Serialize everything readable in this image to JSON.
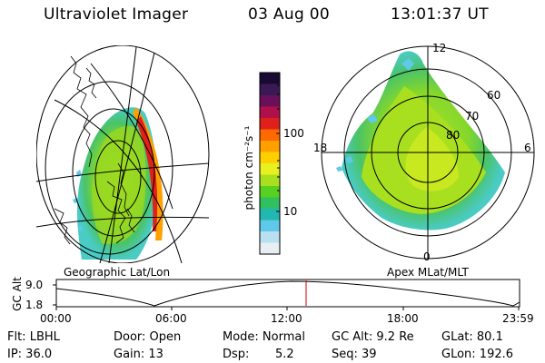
{
  "header": {
    "instrument": "Ultraviolet Imager",
    "date": "03 Aug 00",
    "time": "13:01:37 UT"
  },
  "left_panel": {
    "caption": "Geographic Lat/Lon"
  },
  "right_panel": {
    "caption": "Apex MLat/MLT",
    "mlt_labels": {
      "top": "12",
      "left": "18",
      "right": "6",
      "bottom": "0"
    },
    "lat_labels": [
      "60",
      "70",
      "80"
    ]
  },
  "colorbar": {
    "unit": "photon cm⁻²s⁻¹",
    "ticks": [
      "100",
      "10"
    ],
    "colors": [
      "#1a0a33",
      "#3a1a55",
      "#6a0f5a",
      "#b0104a",
      "#e0201a",
      "#ff6a00",
      "#ffa000",
      "#ffd000",
      "#e8f020",
      "#a8e020",
      "#58d020",
      "#30c060",
      "#20b8b0",
      "#60c8e8",
      "#b8e0f0",
      "#e8eef4"
    ]
  },
  "timeline": {
    "y_label": "GC Alt",
    "y_ticks": [
      "9.0",
      "1.8"
    ],
    "x_ticks": [
      "00:00",
      "06:00",
      "12:00",
      "18:00",
      "23:59"
    ]
  },
  "info": {
    "filter": "Flt: LBHL",
    "ip": "IP: 36.0",
    "door": "Door: Open",
    "gain": "Gain: 13",
    "mode": "Mode: Normal",
    "dsp_label": "Dsp:",
    "dsp_value": "5.2",
    "gc_alt": "GC Alt: 9.2 Re",
    "seq": "Seq: 39",
    "glat": "GLat: 80.1",
    "glon": "GLon: 192.6"
  }
}
